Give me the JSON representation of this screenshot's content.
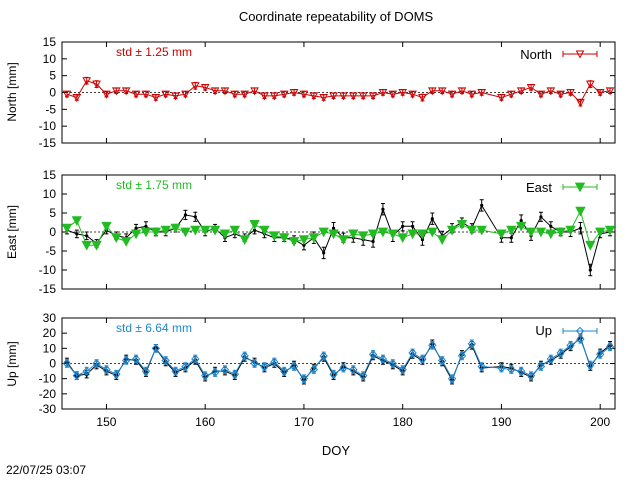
{
  "title": "Coordinate repeatability of DOMS",
  "footer": {
    "timestamp": "22/07/25 03:07"
  },
  "colors": {
    "north": "#cc0000",
    "east": "#22bb22",
    "up": "#1e88d0",
    "twin": "#000000"
  },
  "chart_data": [
    {
      "type": "line",
      "id": "north",
      "ylabel": "North [mm]",
      "ylim": [
        -15,
        15
      ],
      "yticks": [
        15,
        10,
        5,
        0,
        -5,
        -10,
        -15
      ],
      "stat_text": "std ± 1.25 mm",
      "legend": "North",
      "legend_position": "top-right",
      "xlim": [
        145.5,
        201.5
      ],
      "series": [
        {
          "name": "North",
          "x": [
            146,
            147,
            148,
            149,
            150,
            151,
            152,
            153,
            154,
            155,
            156,
            157,
            158,
            159,
            160,
            161,
            162,
            163,
            164,
            165,
            166,
            167,
            168,
            169,
            170,
            171,
            172,
            173,
            174,
            175,
            176,
            177,
            178,
            179,
            180,
            181,
            182,
            183,
            184,
            185,
            186,
            187,
            188,
            190,
            191,
            192,
            193,
            194,
            195,
            196,
            197,
            198,
            199,
            200,
            201
          ],
          "y": [
            -0.5,
            -1.5,
            3.5,
            2.5,
            -0.5,
            0.5,
            0.5,
            -0.5,
            -0.5,
            -1.5,
            -0.5,
            -1,
            -0.5,
            2,
            1.5,
            0.5,
            0.5,
            -0.5,
            -0.5,
            0.5,
            -1,
            -1,
            -0.5,
            0,
            -0.5,
            -1,
            -1.5,
            -1,
            -1,
            -1,
            -1,
            -1,
            0,
            -0.5,
            0,
            -0.5,
            -1.5,
            0.5,
            0.5,
            -0.5,
            0.5,
            -0.5,
            0,
            -1.5,
            -0.5,
            0.5,
            1.5,
            -0.5,
            0.5,
            -0.5,
            0,
            -3,
            2.5,
            0,
            0.5
          ],
          "err": [
            0.8,
            0.8,
            1,
            1,
            0.8,
            0.8,
            0.8,
            0.8,
            0.8,
            0.8,
            0.8,
            0.8,
            0.8,
            1,
            0.8,
            0.8,
            0.8,
            0.8,
            0.8,
            0.8,
            0.8,
            0.8,
            0.8,
            0.8,
            0.8,
            0.8,
            0.8,
            0.8,
            0.8,
            0.8,
            0.8,
            0.8,
            0.8,
            0.8,
            0.8,
            0.8,
            1,
            0.8,
            0.8,
            0.8,
            0.8,
            0.8,
            0.8,
            0.8,
            0.8,
            0.8,
            0.8,
            0.8,
            0.8,
            0.8,
            0.8,
            1,
            1,
            0.8,
            0.8
          ]
        }
      ]
    },
    {
      "type": "line",
      "id": "east",
      "ylabel": "East [mm]",
      "ylim": [
        -15,
        15
      ],
      "yticks": [
        15,
        10,
        5,
        0,
        -5,
        -10,
        -15
      ],
      "stat_text": "std ± 1.75 mm",
      "legend": "East",
      "legend_position": "top-right",
      "xlim": [
        145.5,
        201.5
      ],
      "series": [
        {
          "name": "East",
          "x": [
            146,
            147,
            148,
            149,
            150,
            151,
            152,
            153,
            154,
            155,
            156,
            157,
            158,
            159,
            160,
            161,
            162,
            163,
            164,
            165,
            166,
            167,
            168,
            169,
            170,
            171,
            172,
            173,
            174,
            175,
            176,
            177,
            178,
            179,
            180,
            181,
            182,
            183,
            184,
            185,
            186,
            187,
            188,
            190,
            191,
            192,
            193,
            194,
            195,
            196,
            197,
            198,
            199,
            200,
            201
          ],
          "y": [
            1,
            3,
            -3.5,
            -3.5,
            1.5,
            -1.5,
            -2.5,
            -0.5,
            0,
            0,
            0.5,
            1,
            0,
            0.5,
            0.5,
            0.5,
            -0.5,
            0.5,
            -2,
            2,
            0.5,
            -1,
            -1.5,
            -2.5,
            -2,
            -1.5,
            0,
            -0.5,
            -2,
            -0.5,
            -1,
            -0.5,
            0,
            -0.5,
            -1.5,
            -0.5,
            -0.5,
            0,
            -2,
            0.5,
            2,
            0.5,
            0.5,
            -0.5,
            0.5,
            1.5,
            0,
            0,
            -0.5,
            0,
            0.5,
            5.5,
            -3.5,
            0,
            0.5
          ],
          "err": []
        },
        {
          "name": "",
          "x": [
            146,
            147,
            148,
            149,
            150,
            151,
            152,
            153,
            154,
            155,
            156,
            157,
            158,
            159,
            160,
            161,
            162,
            163,
            164,
            165,
            166,
            167,
            168,
            169,
            170,
            171,
            172,
            173,
            174,
            175,
            176,
            177,
            178,
            179,
            180,
            181,
            182,
            183,
            184,
            185,
            186,
            187,
            188,
            190,
            191,
            192,
            193,
            194,
            195,
            196,
            197,
            198,
            199,
            200,
            201
          ],
          "y": [
            0.5,
            -0.5,
            -1,
            -3,
            0.5,
            -1,
            -1.5,
            1,
            1.5,
            0,
            0,
            1,
            4.5,
            4,
            0,
            1,
            -1.5,
            -0.5,
            -1.5,
            0.5,
            -0.5,
            -1.5,
            -1.5,
            -2,
            -3.5,
            -1.5,
            -5.5,
            1,
            -1.5,
            -1.5,
            -2,
            -2.5,
            6,
            -1,
            1.5,
            1.5,
            -2,
            3.5,
            -1,
            1,
            2.5,
            1,
            7,
            -1.5,
            -1.5,
            3,
            -1,
            4,
            1.5,
            0,
            0,
            1,
            -10,
            -0.5,
            0
          ],
          "err": [
            1,
            1,
            1,
            1,
            1,
            1,
            1,
            1,
            1.2,
            1,
            1,
            1,
            1.2,
            1.2,
            1,
            1,
            1,
            1,
            1,
            1,
            1,
            1,
            1,
            1,
            1.2,
            1.5,
            1.5,
            1.5,
            1.2,
            1.2,
            1.5,
            1.5,
            1.5,
            1.5,
            1.2,
            1.2,
            1.5,
            1.5,
            1.2,
            1.2,
            1.2,
            1.2,
            1.5,
            1.2,
            1.2,
            1.5,
            1.2,
            1.2,
            1.2,
            1,
            1.2,
            1.5,
            1.5,
            1,
            1
          ]
        }
      ]
    },
    {
      "type": "line",
      "id": "up",
      "ylabel": "Up [mm]",
      "ylim": [
        -30,
        30
      ],
      "yticks": [
        30,
        20,
        10,
        0,
        -10,
        -20,
        -30
      ],
      "stat_text": "std ± 6.64 mm",
      "legend": "Up",
      "legend_position": "top-right",
      "xlim": [
        145.5,
        201.5
      ],
      "xticks": [
        150,
        160,
        170,
        180,
        190,
        200
      ],
      "xlabel": "DOY",
      "series": [
        {
          "name": "Up",
          "x": [
            146,
            147,
            148,
            149,
            150,
            151,
            152,
            153,
            154,
            155,
            156,
            157,
            158,
            159,
            160,
            161,
            162,
            163,
            164,
            165,
            166,
            167,
            168,
            169,
            170,
            171,
            172,
            173,
            174,
            175,
            176,
            177,
            178,
            179,
            180,
            181,
            182,
            183,
            184,
            185,
            186,
            187,
            188,
            190,
            191,
            192,
            193,
            194,
            195,
            196,
            197,
            198,
            199,
            200,
            201
          ],
          "y": [
            0,
            -8,
            -5,
            0,
            -4,
            -7,
            2,
            3,
            -5,
            10,
            2,
            -5,
            -2,
            3,
            -8,
            -6,
            -4,
            -7,
            5,
            0,
            -2,
            1,
            -5,
            -2,
            -10,
            -4,
            5,
            -7,
            -3,
            -4,
            -8,
            6,
            3,
            0,
            -4,
            7,
            3,
            12,
            2,
            -10,
            5,
            13,
            -2,
            -3,
            -4,
            -5,
            -8,
            -2,
            3,
            7,
            12,
            16,
            -1,
            6,
            11
          ],
          "err": [
            2.5,
            2.5,
            2.5,
            2.5,
            2.5,
            2.5,
            2.5,
            2.5,
            2.5,
            2.5,
            2.5,
            2.5,
            2.5,
            2.5,
            2.5,
            2.5,
            2.5,
            2.5,
            2.5,
            2.5,
            2.5,
            2.5,
            2.5,
            2.5,
            2.5,
            2.5,
            2.5,
            2.5,
            2.5,
            2.5,
            2.5,
            2.5,
            2.5,
            2.5,
            2.5,
            2.5,
            2.5,
            2.5,
            2.5,
            2.5,
            2.5,
            2.5,
            2.5,
            2.5,
            2.5,
            2.5,
            2.5,
            2.5,
            2.5,
            2.5,
            2.5,
            2.5,
            2.5,
            2.5,
            2.5
          ]
        },
        {
          "name": "",
          "x": [
            146,
            147,
            148,
            149,
            150,
            151,
            152,
            153,
            154,
            155,
            156,
            157,
            158,
            159,
            160,
            161,
            162,
            163,
            164,
            165,
            166,
            167,
            168,
            169,
            170,
            171,
            172,
            173,
            174,
            175,
            176,
            177,
            178,
            179,
            180,
            181,
            182,
            183,
            184,
            185,
            186,
            187,
            188,
            190,
            191,
            192,
            193,
            194,
            195,
            196,
            197,
            198,
            199,
            200,
            201
          ],
          "y": [
            1,
            -8,
            -7,
            -1,
            -5,
            -8,
            3,
            2,
            -6,
            10,
            1,
            -6,
            -3,
            2,
            -9,
            -5,
            -5,
            -8,
            4,
            1,
            -3,
            0,
            -6,
            -1,
            -11,
            -3,
            4,
            -8,
            -2,
            -5,
            -9,
            5,
            2,
            -1,
            -5,
            6,
            2,
            13,
            1,
            -11,
            6,
            12,
            -3,
            -2,
            -3,
            -6,
            -9,
            -1,
            2,
            6,
            11,
            17,
            -2,
            7,
            12
          ],
          "err": [
            2.5,
            2.5,
            2.5,
            2.5,
            2.5,
            2.5,
            2.5,
            2.5,
            2.5,
            2.5,
            2.5,
            2.5,
            2.5,
            2.5,
            2.5,
            2.5,
            2.5,
            2.5,
            2.5,
            2.5,
            2.5,
            2.5,
            2.5,
            2.5,
            2.5,
            2.5,
            2.5,
            2.5,
            2.5,
            2.5,
            2.5,
            2.5,
            2.5,
            2.5,
            2.5,
            2.5,
            2.5,
            2.5,
            2.5,
            2.5,
            2.5,
            2.5,
            2.5,
            2.5,
            2.5,
            2.5,
            2.5,
            2.5,
            2.5,
            2.5,
            2.5,
            2.5,
            2.5,
            2.5,
            2.5
          ]
        }
      ]
    }
  ]
}
